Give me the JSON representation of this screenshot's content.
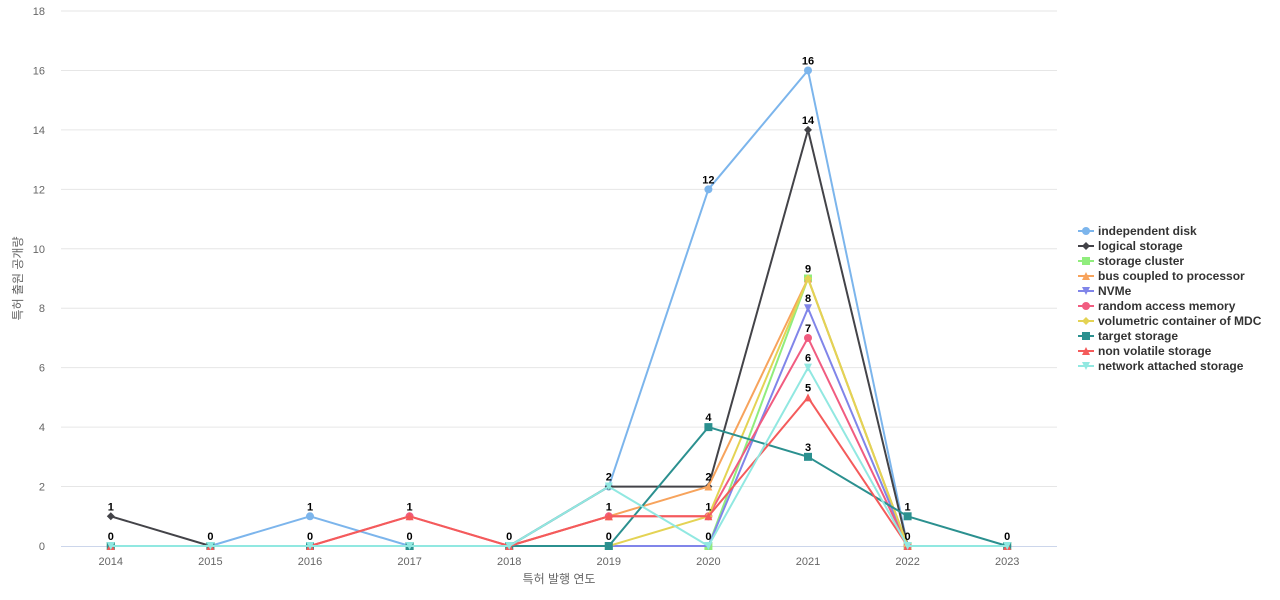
{
  "chart_data": {
    "type": "line",
    "xlabel": "특허 발행 연도",
    "ylabel": "특허 출원 공개량",
    "ylim": [
      0,
      18
    ],
    "yticks": [
      0,
      2,
      4,
      6,
      8,
      10,
      12,
      14,
      16,
      18
    ],
    "grid": true,
    "legend_position": "right",
    "categories": [
      "2014",
      "2015",
      "2016",
      "2017",
      "2018",
      "2019",
      "2020",
      "2021",
      "2022",
      "2023"
    ],
    "series": [
      {
        "name": "independent disk",
        "color": "#7cb5ec",
        "marker": "circle",
        "values": [
          0,
          0,
          1,
          0,
          0,
          2,
          12,
          16,
          0,
          0
        ]
      },
      {
        "name": "logical storage",
        "color": "#434348",
        "marker": "diamond",
        "values": [
          1,
          0,
          0,
          0,
          0,
          2,
          2,
          14,
          0,
          0
        ]
      },
      {
        "name": "storage cluster",
        "color": "#90ed7d",
        "marker": "square",
        "values": [
          0,
          0,
          0,
          0,
          0,
          0,
          0,
          9,
          0,
          0
        ]
      },
      {
        "name": "bus coupled to processor",
        "color": "#f7a35c",
        "marker": "triangle",
        "values": [
          0,
          0,
          0,
          0,
          0,
          1,
          2,
          9,
          0,
          0
        ]
      },
      {
        "name": "NVMe",
        "color": "#8085e9",
        "marker": "triangle-down",
        "values": [
          0,
          0,
          0,
          0,
          0,
          0,
          0,
          8,
          0,
          0
        ]
      },
      {
        "name": "random access memory",
        "color": "#f15c80",
        "marker": "circle",
        "values": [
          0,
          0,
          0,
          1,
          0,
          1,
          1,
          7,
          0,
          0
        ]
      },
      {
        "name": "volumetric container of MDC",
        "color": "#e4d354",
        "marker": "diamond",
        "values": [
          0,
          0,
          0,
          0,
          0,
          0,
          1,
          9,
          0,
          0
        ]
      },
      {
        "name": "target storage",
        "color": "#2b908f",
        "marker": "square",
        "values": [
          0,
          0,
          0,
          0,
          0,
          0,
          4,
          3,
          1,
          0
        ]
      },
      {
        "name": "non volatile storage",
        "color": "#f45b5b",
        "marker": "triangle",
        "values": [
          0,
          0,
          0,
          1,
          0,
          1,
          1,
          5,
          0,
          0
        ]
      },
      {
        "name": "network attached storage",
        "color": "#91e8e1",
        "marker": "triangle-down",
        "values": [
          0,
          0,
          0,
          0,
          0,
          2,
          0,
          6,
          0,
          0
        ]
      }
    ],
    "data_labels": [
      {
        "x": "2014",
        "value": 1
      },
      {
        "x": "2014",
        "value": 0
      },
      {
        "x": "2015",
        "value": 0
      },
      {
        "x": "2016",
        "value": 1
      },
      {
        "x": "2016",
        "value": 0
      },
      {
        "x": "2017",
        "value": 1
      },
      {
        "x": "2017",
        "value": 0
      },
      {
        "x": "2018",
        "value": 0
      },
      {
        "x": "2019",
        "value": 2
      },
      {
        "x": "2019",
        "value": 1
      },
      {
        "x": "2019",
        "value": 0
      },
      {
        "x": "2020",
        "value": 12
      },
      {
        "x": "2020",
        "value": 4
      },
      {
        "x": "2020",
        "value": 2
      },
      {
        "x": "2020",
        "value": 1
      },
      {
        "x": "2020",
        "value": 0
      },
      {
        "x": "2021",
        "value": 16
      },
      {
        "x": "2021",
        "value": 14
      },
      {
        "x": "2021",
        "value": 9
      },
      {
        "x": "2021",
        "value": 8
      },
      {
        "x": "2021",
        "value": 7
      },
      {
        "x": "2021",
        "value": 6
      },
      {
        "x": "2021",
        "value": 5
      },
      {
        "x": "2021",
        "value": 3
      },
      {
        "x": "2022",
        "value": 1
      },
      {
        "x": "2022",
        "value": 0
      },
      {
        "x": "2023",
        "value": 0
      }
    ]
  }
}
